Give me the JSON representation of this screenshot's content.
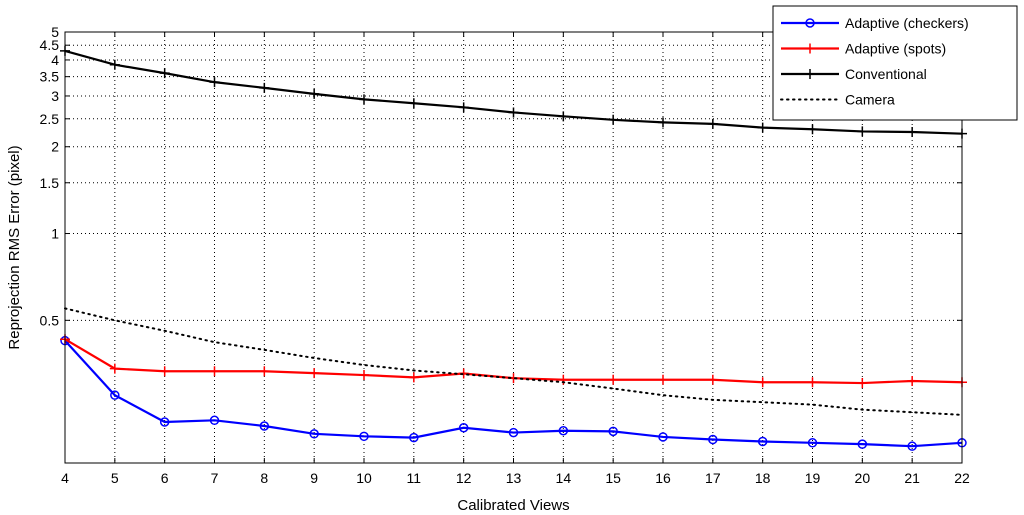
{
  "chart_data": {
    "type": "line",
    "title": "",
    "xlabel": "Calibrated Views",
    "ylabel": "Reprojection RMS Error (pixel)",
    "yscale": "log",
    "xlim": [
      4,
      22
    ],
    "ylim": [
      0.16,
      5
    ],
    "xticks": [
      "4",
      "5",
      "6",
      "7",
      "8",
      "9",
      "10",
      "11",
      "12",
      "13",
      "14",
      "15",
      "16",
      "17",
      "18",
      "19",
      "20",
      "21",
      "22"
    ],
    "yticks": [
      {
        "value": 0.5,
        "label": "0.5"
      },
      {
        "value": 1,
        "label": "1"
      },
      {
        "value": 1.5,
        "label": "1.5"
      },
      {
        "value": 2,
        "label": "2"
      },
      {
        "value": 2.5,
        "label": "2.5"
      },
      {
        "value": 3,
        "label": "3"
      },
      {
        "value": 3.5,
        "label": "3.5"
      },
      {
        "value": 4,
        "label": "4"
      },
      {
        "value": 4.5,
        "label": "4.5"
      },
      {
        "value": 5,
        "label": "5"
      }
    ],
    "grid": true,
    "legend_position": "top-right",
    "x": [
      4,
      5,
      6,
      7,
      8,
      9,
      10,
      11,
      12,
      13,
      14,
      15,
      16,
      17,
      18,
      19,
      20,
      21,
      22
    ],
    "series": [
      {
        "name": "Adaptive (checkers)",
        "color": "#0000ff",
        "line_style": "solid",
        "marker": "circle",
        "values": [
          0.425,
          0.275,
          0.222,
          0.225,
          0.215,
          0.202,
          0.198,
          0.196,
          0.212,
          0.204,
          0.207,
          0.206,
          0.197,
          0.193,
          0.19,
          0.188,
          0.186,
          0.183,
          0.188
        ]
      },
      {
        "name": "Adaptive (spots)",
        "color": "#ff0000",
        "line_style": "solid",
        "marker": "plus",
        "values": [
          0.43,
          0.34,
          0.333,
          0.333,
          0.333,
          0.328,
          0.323,
          0.317,
          0.327,
          0.315,
          0.311,
          0.311,
          0.311,
          0.311,
          0.305,
          0.305,
          0.303,
          0.308,
          0.305
        ]
      },
      {
        "name": "Conventional",
        "color": "#000000",
        "line_style": "solid",
        "marker": "plus",
        "values": [
          4.3,
          3.85,
          3.6,
          3.35,
          3.2,
          3.05,
          2.92,
          2.83,
          2.74,
          2.63,
          2.55,
          2.48,
          2.43,
          2.4,
          2.33,
          2.3,
          2.26,
          2.25,
          2.22
        ]
      },
      {
        "name": "Camera",
        "color": "#000000",
        "line_style": "dotted",
        "marker": "none",
        "values": [
          0.55,
          0.5,
          0.46,
          0.42,
          0.395,
          0.37,
          0.35,
          0.335,
          0.325,
          0.315,
          0.305,
          0.29,
          0.275,
          0.265,
          0.26,
          0.255,
          0.245,
          0.24,
          0.235
        ]
      }
    ]
  }
}
